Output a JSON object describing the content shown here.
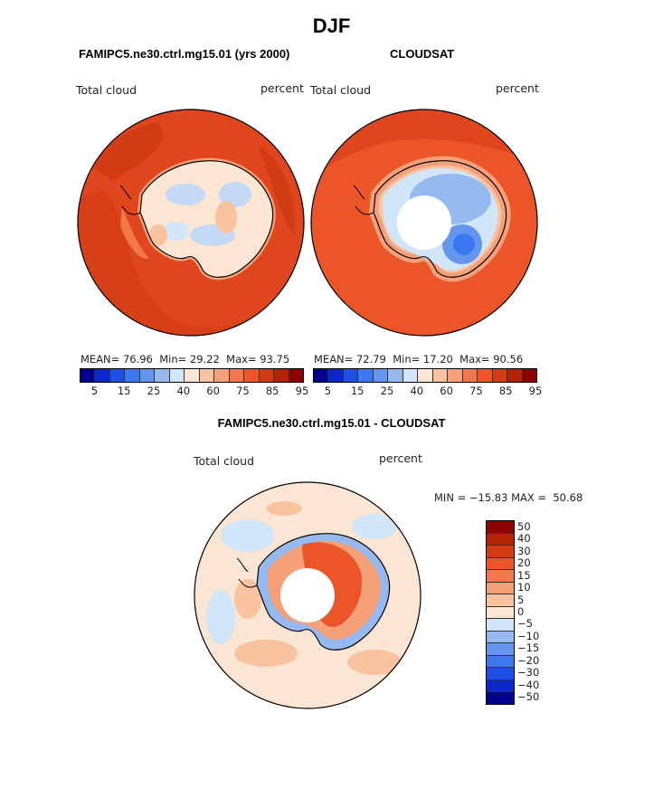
{
  "title": "DJF",
  "panels": {
    "model": {
      "title": "FAMIPC5.ne30.ctrl.mg15.01 (yrs 2000)",
      "left_label": "Total cloud",
      "right_label": "percent",
      "stats": {
        "mean_label": "MEAN=",
        "mean": "76.96",
        "min_label": "Min=",
        "min": "29.22",
        "max_label": "Max=",
        "max": "93.75"
      }
    },
    "obs": {
      "title": "CLOUDSAT",
      "left_label": "Total cloud",
      "right_label": "percent",
      "stats": {
        "mean_label": "MEAN=",
        "mean": "72.79",
        "min_label": "Min=",
        "min": "17.20",
        "max_label": "Max=",
        "max": "90.56"
      }
    },
    "diff": {
      "title": "FAMIPC5.ne30.ctrl.mg15.01 - CLOUDSAT",
      "left_label": "Total cloud",
      "right_label": "percent",
      "minmax": "MIN = −15.83 MAX =  50.68"
    }
  },
  "colorbar_abs": {
    "colors": [
      "#00008c",
      "#0a28c8",
      "#1e50e6",
      "#3c78f0",
      "#6496f0",
      "#96b9f0",
      "#d2e6fa",
      "#fae6d2",
      "#fac3a0",
      "#f5a078",
      "#f0784b",
      "#eb5528",
      "#d23c14",
      "#b42305",
      "#8c0000"
    ],
    "ticks": [
      "5",
      "15",
      "25",
      "40",
      "60",
      "75",
      "85",
      "95"
    ]
  },
  "colorbar_diff": {
    "colors": [
      "#8c0000",
      "#b42305",
      "#d23c14",
      "#eb5528",
      "#f0784b",
      "#f5a078",
      "#fac3a0",
      "#fae6d2",
      "#d2e6fa",
      "#96b9f0",
      "#6496f0",
      "#3c78f0",
      "#1e50e6",
      "#0a28c8",
      "#00008c"
    ],
    "labels": [
      "50",
      "40",
      "30",
      "20",
      "15",
      "10",
      "5",
      "0",
      "−5",
      "−10",
      "−15",
      "−20",
      "−30",
      "−40",
      "−50"
    ]
  }
}
